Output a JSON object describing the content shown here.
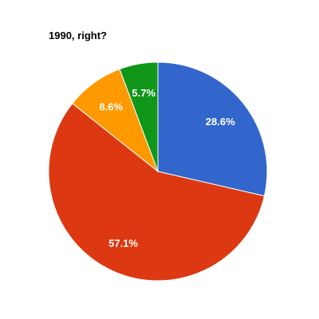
{
  "chart_data": {
    "type": "pie",
    "title": "1990, right?",
    "slices": [
      {
        "value": 28.6,
        "label": "28.6%",
        "color": "#3366cc"
      },
      {
        "value": 57.1,
        "label": "57.1%",
        "color": "#dc3912"
      },
      {
        "value": 8.6,
        "label": "8.6%",
        "color": "#ff9900"
      },
      {
        "value": 5.7,
        "label": "5.7%",
        "color": "#109618"
      }
    ],
    "start": "top",
    "direction": "clockwise"
  }
}
